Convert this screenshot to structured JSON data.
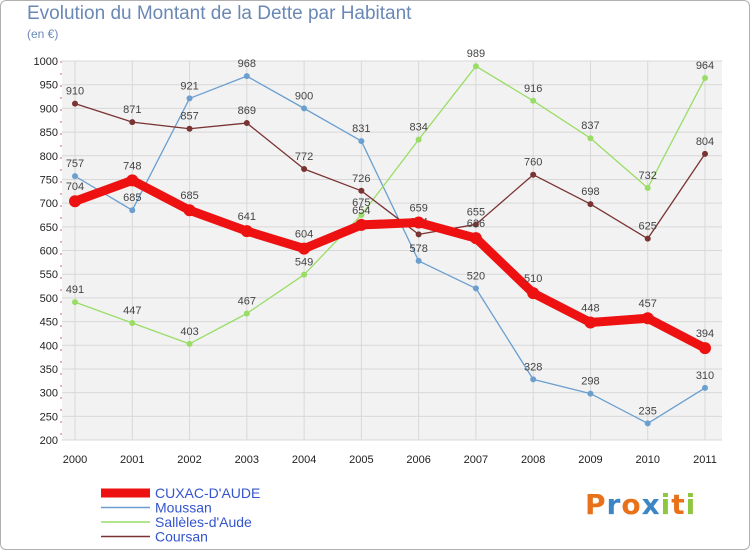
{
  "chart_data": {
    "type": "line",
    "title": "Evolution du Montant de la Dette par Habitant",
    "subtitle": "(en €)",
    "x": [
      "2000",
      "2001",
      "2002",
      "2003",
      "2004",
      "2005",
      "2006",
      "2007",
      "2008",
      "2009",
      "2010",
      "2011"
    ],
    "ylim": [
      200,
      1000
    ],
    "yticks": [
      200,
      250,
      300,
      350,
      400,
      450,
      500,
      550,
      600,
      650,
      700,
      750,
      800,
      850,
      900,
      950,
      1000
    ],
    "grid": true,
    "legend_position": "bottom-left",
    "series": [
      {
        "name": "Moussan",
        "color": "#6a9fd0",
        "values": [
          757,
          685,
          921,
          968,
          900,
          831,
          578,
          520,
          328,
          298,
          235,
          310
        ]
      },
      {
        "name": "Sallèles-d'Aude",
        "color": "#99dd66",
        "values": [
          491,
          447,
          403,
          467,
          549,
          675,
          834,
          989,
          916,
          837,
          732,
          964
        ]
      },
      {
        "name": "Coursan",
        "color": "#7a3333",
        "values": [
          910,
          871,
          857,
          869,
          772,
          726,
          634,
          655,
          760,
          698,
          625,
          804
        ]
      },
      {
        "name": "CUXAC-D'AUDE",
        "color": "#ee1111",
        "values": [
          704,
          748,
          685,
          641,
          604,
          654,
          659,
          626,
          510,
          448,
          457,
          394
        ]
      }
    ],
    "legend_order": [
      "CUXAC-D'AUDE",
      "Moussan",
      "Sallèles-d'Aude",
      "Coursan"
    ]
  },
  "logo": {
    "letters": [
      "P",
      "r",
      "o",
      "x",
      "i",
      "t",
      "i"
    ],
    "colors": [
      "#e8711a",
      "#3d86c6",
      "#e8711a",
      "#3d86c6",
      "#8dc63f",
      "#e8711a",
      "#8dc63f"
    ]
  }
}
